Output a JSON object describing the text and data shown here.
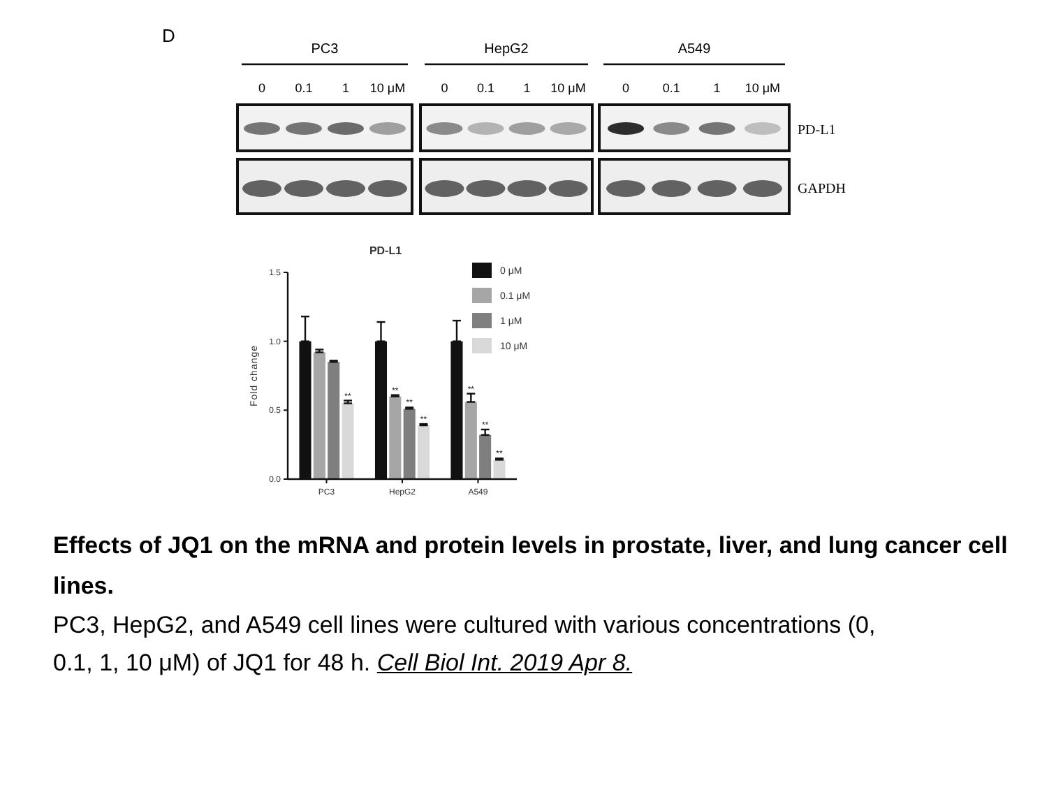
{
  "chart_data": [
    {
      "type": "other",
      "title": "D",
      "annotations": [
        "PC3",
        "HepG2",
        "A549",
        "0",
        "0.1",
        "1",
        "10 μM",
        "0",
        "0.1",
        "1",
        "10 μM",
        "0",
        "0.1",
        "1",
        "10 μM",
        "PD-L1",
        "GAPDH"
      ]
    },
    {
      "type": "bar",
      "title": "PD-L1",
      "ylabel": "Fold change",
      "categories": [
        "PC3",
        "HepG2",
        "A549"
      ],
      "series": [
        {
          "name": "0 μM",
          "color": "#111111",
          "values": [
            1.0,
            1.0,
            1.0
          ],
          "errors": [
            [
              1.0,
              1.18
            ],
            [
              1.0,
              1.14
            ],
            [
              1.0,
              1.15
            ]
          ]
        },
        {
          "name": "0.1 μM",
          "color": "#a6a6a6",
          "values": [
            0.92,
            0.6,
            0.56
          ],
          "errors": [
            [
              0.92,
              0.94
            ],
            [
              0.6,
              0.61
            ],
            [
              0.56,
              0.62
            ]
          ],
          "value_labels": [
            null,
            "**",
            "**"
          ]
        },
        {
          "name": "1 μM",
          "color": "#7f7f7f",
          "values": [
            0.85,
            0.51,
            0.32
          ],
          "errors": [
            [
              0.85,
              0.86
            ],
            [
              0.51,
              0.52
            ],
            [
              0.32,
              0.36
            ]
          ],
          "value_labels": [
            null,
            "**",
            "**"
          ]
        },
        {
          "name": "10 μM",
          "color": "#d9d9d9",
          "values": [
            0.55,
            0.39,
            0.14
          ],
          "errors": [
            [
              0.55,
              0.57
            ],
            [
              0.39,
              0.4
            ],
            [
              0.14,
              0.15
            ]
          ],
          "value_labels": [
            "**",
            "**",
            "**"
          ]
        }
      ],
      "ylim": [
        0,
        1.5
      ],
      "yticks": [
        {
          "value": 0,
          "label": "0.0"
        },
        {
          "value": 0.5,
          "label": "0.5"
        },
        {
          "value": 1,
          "label": "1.0"
        },
        {
          "value": 1.5,
          "label": "1.5"
        }
      ],
      "legend": "top right",
      "annotations": [
        "Effects of JQ1 on the mRNA and protein levels in prostate, liver, and lung cancer cell lines.",
        "PC3, HepG2, and A549 cell lines were cultured with various concentrations (0, 0.1, 1, 10 μM) of JQ1 for 48 h.",
        "Cell Biol Int. 2019 Apr 8."
      ]
    }
  ]
}
